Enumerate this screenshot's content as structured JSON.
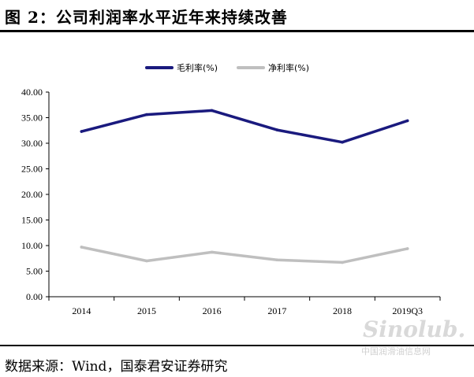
{
  "header": {
    "title": "图 2：公司利润率水平近年来持续改善"
  },
  "footer": {
    "source": "数据来源：Wind，国泰君安证券研究"
  },
  "watermark": {
    "brand": "Sinolub.com",
    "text": "中国润滑油信息网"
  },
  "chart_data": {
    "type": "line",
    "title": "",
    "xlabel": "",
    "ylabel": "",
    "categories": [
      "2014",
      "2015",
      "2016",
      "2017",
      "2018",
      "2019Q3"
    ],
    "ylim": [
      0,
      40
    ],
    "yticks": [
      "0.00",
      "5.00",
      "10.00",
      "15.00",
      "20.00",
      "25.00",
      "30.00",
      "35.00",
      "40.00"
    ],
    "legend_position": "top-center",
    "grid": false,
    "series": [
      {
        "name": "毛利率(%)",
        "color": "#1a1a7e",
        "values": [
          32.3,
          35.6,
          36.4,
          32.6,
          30.2,
          34.4
        ]
      },
      {
        "name": "净利率(%)",
        "color": "#bfbfbf",
        "values": [
          9.7,
          7.0,
          8.7,
          7.2,
          6.7,
          9.4
        ]
      }
    ]
  }
}
